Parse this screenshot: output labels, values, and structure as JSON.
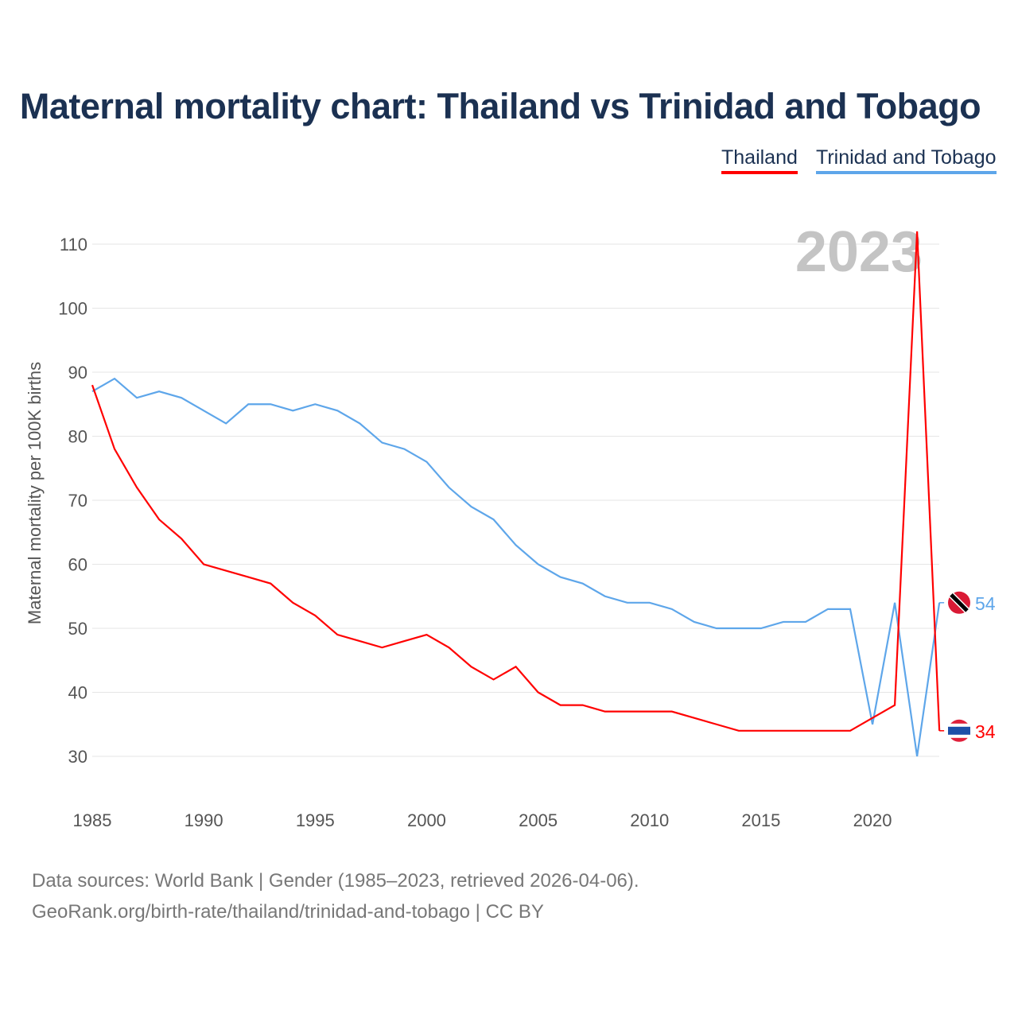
{
  "chart_data": {
    "type": "line",
    "title": "Maternal mortality chart: Thailand vs Trinidad and Tobago",
    "ylabel": "Maternal mortality per 100K births",
    "xlabel": "",
    "year_label": "2023",
    "ylim": [
      30,
      110
    ],
    "xlim": [
      1985,
      2023
    ],
    "yticks": [
      30,
      40,
      50,
      60,
      70,
      80,
      90,
      100,
      110
    ],
    "xticks": [
      1985,
      1990,
      1995,
      2000,
      2005,
      2010,
      2015,
      2020
    ],
    "x": [
      1985,
      1986,
      1987,
      1988,
      1989,
      1990,
      1991,
      1992,
      1993,
      1994,
      1995,
      1996,
      1997,
      1998,
      1999,
      2000,
      2001,
      2002,
      2003,
      2004,
      2005,
      2006,
      2007,
      2008,
      2009,
      2010,
      2011,
      2012,
      2013,
      2014,
      2015,
      2016,
      2017,
      2018,
      2019,
      2020,
      2021,
      2022,
      2023
    ],
    "series": [
      {
        "name": "Thailand",
        "color": "#ff0000",
        "end_label": "34",
        "values": [
          88,
          78,
          72,
          67,
          64,
          60,
          59,
          58,
          57,
          54,
          52,
          49,
          48,
          47,
          48,
          49,
          47,
          44,
          42,
          44,
          40,
          38,
          38,
          37,
          37,
          37,
          37,
          36,
          35,
          34,
          34,
          34,
          34,
          34,
          34,
          36,
          38,
          112,
          34
        ]
      },
      {
        "name": "Trinidad and Tobago",
        "color": "#5ea6ea",
        "end_label": "54",
        "values": [
          87,
          89,
          86,
          87,
          86,
          84,
          82,
          85,
          85,
          84,
          85,
          84,
          82,
          79,
          78,
          76,
          72,
          69,
          67,
          63,
          60,
          58,
          57,
          55,
          54,
          54,
          53,
          51,
          50,
          50,
          50,
          51,
          51,
          53,
          53,
          35,
          54,
          30,
          54
        ]
      }
    ],
    "legend": "top-right",
    "grid": true
  },
  "source": {
    "line1": "Data sources: World Bank | Gender (1985–2023, retrieved 2026-04-06).",
    "line2": "GeoRank.org/birth-rate/thailand/trinidad-and-tobago | CC BY"
  }
}
